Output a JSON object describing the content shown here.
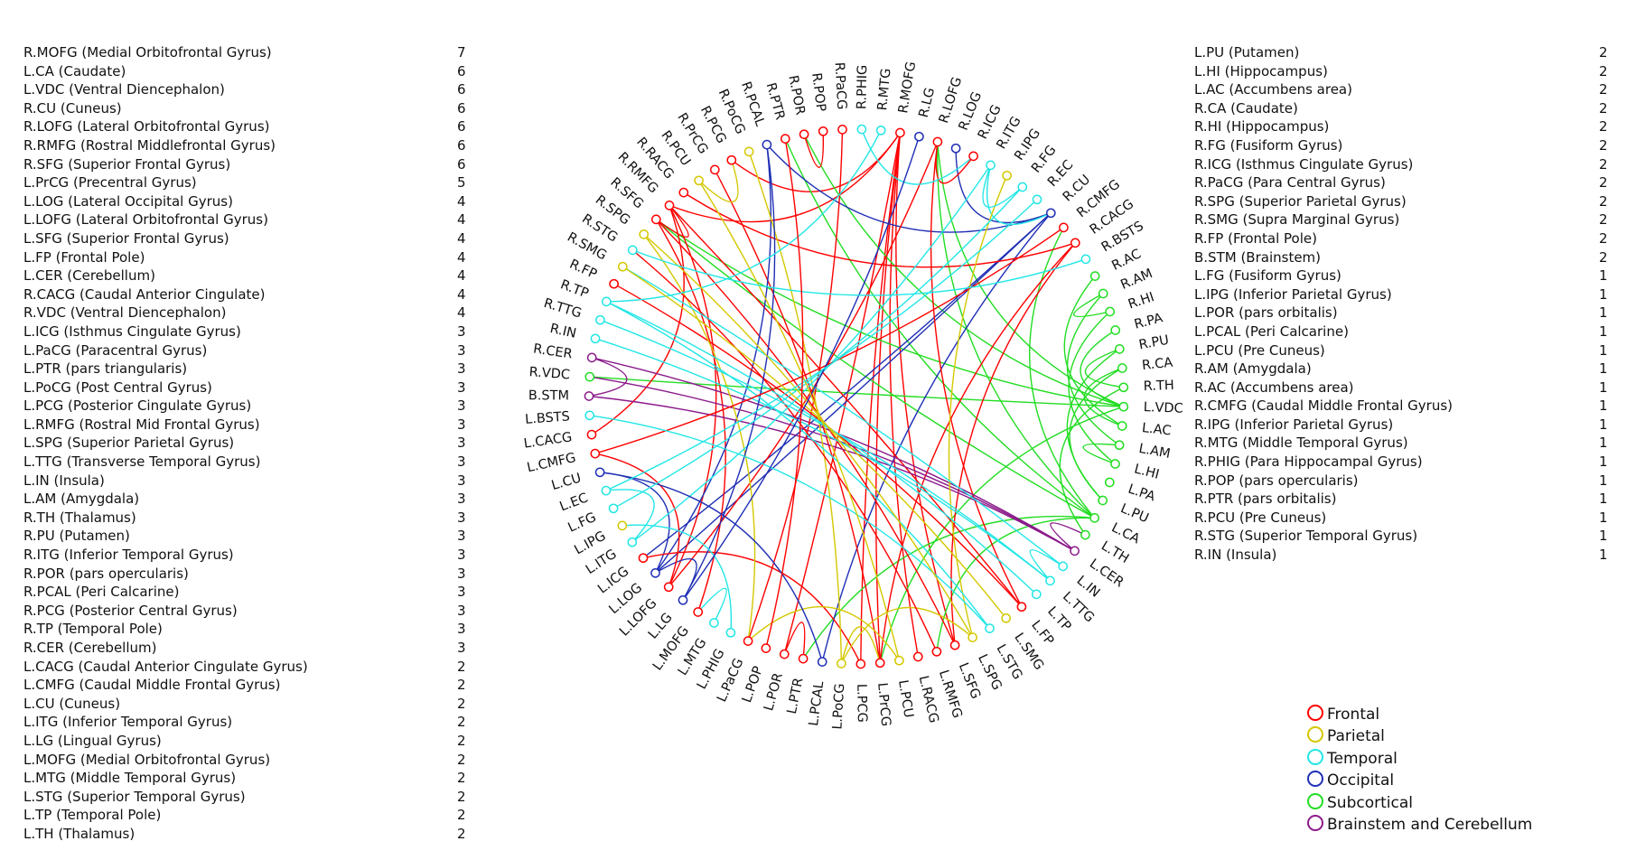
{
  "left_list": [
    {
      "label": "R.MOFG (Medial Orbitofrontal Gyrus)",
      "count": "7"
    },
    {
      "label": "L.CA (Caudate)",
      "count": "6"
    },
    {
      "label": "L.VDC (Ventral Diencephalon)",
      "count": "6"
    },
    {
      "label": "R.CU (Cuneus)",
      "count": "6"
    },
    {
      "label": "R.LOFG (Lateral Orbitofrontal Gyrus)",
      "count": "6"
    },
    {
      "label": "R.RMFG (Rostral Middlefrontal Gyrus)",
      "count": "6"
    },
    {
      "label": "R.SFG (Superior Frontal Gyrus)",
      "count": "6"
    },
    {
      "label": "L.PrCG (Precentral Gyrus)",
      "count": "5"
    },
    {
      "label": "L.LOG (Lateral Occipital Gyrus)",
      "count": "4"
    },
    {
      "label": "L.LOFG (Lateral Orbitofrontal Gyrus)",
      "count": "4"
    },
    {
      "label": "L.SFG (Superior Frontal Gyrus)",
      "count": "4"
    },
    {
      "label": "L.FP (Frontal Pole)",
      "count": "4"
    },
    {
      "label": "L.CER (Cerebellum)",
      "count": "4"
    },
    {
      "label": "R.CACG (Caudal Anterior Cingulate)",
      "count": "4"
    },
    {
      "label": "R.VDC (Ventral Diencephalon)",
      "count": "4"
    },
    {
      "label": "L.ICG (Isthmus Cingulate Gyrus)",
      "count": "3"
    },
    {
      "label": "L.PaCG (Paracentral Gyrus)",
      "count": "3"
    },
    {
      "label": "L.PTR (pars triangularis)",
      "count": "3"
    },
    {
      "label": "L.PoCG (Post Central Gyrus)",
      "count": "3"
    },
    {
      "label": "L.PCG (Posterior Cingulate Gyrus)",
      "count": "3"
    },
    {
      "label": "L.RMFG (Rostral Mid Frontal Gyrus)",
      "count": "3"
    },
    {
      "label": "L.SPG (Superior Parietal Gyrus)",
      "count": "3"
    },
    {
      "label": "L.TTG (Transverse Temporal Gyrus)",
      "count": "3"
    },
    {
      "label": "L.IN (Insula)",
      "count": "3"
    },
    {
      "label": "L.AM (Amygdala)",
      "count": "3"
    },
    {
      "label": "R.TH (Thalamus)",
      "count": "3"
    },
    {
      "label": "R.PU (Putamen)",
      "count": "3"
    },
    {
      "label": "R.ITG (Inferior Temporal Gyrus)",
      "count": "3"
    },
    {
      "label": "R.POR (pars opercularis)",
      "count": "3"
    },
    {
      "label": "R.PCAL (Peri Calcarine)",
      "count": "3"
    },
    {
      "label": "R.PCG (Posterior Central Gyrus)",
      "count": "3"
    },
    {
      "label": "R.TP (Temporal Pole)",
      "count": "3"
    },
    {
      "label": "R.CER (Cerebellum)",
      "count": "3"
    },
    {
      "label": "L.CACG (Caudal Anterior Cingulate Gyrus)",
      "count": "2"
    },
    {
      "label": "L.CMFG (Caudal Middle Frontal Gyrus)",
      "count": "2"
    },
    {
      "label": "L.CU (Cuneus)",
      "count": "2"
    },
    {
      "label": "L.ITG (Inferior Temporal Gyrus)",
      "count": "2"
    },
    {
      "label": "L.LG (Lingual Gyrus)",
      "count": "2"
    },
    {
      "label": "L.MOFG (Medial Orbitofrontal Gyrus)",
      "count": "2"
    },
    {
      "label": "L.MTG (Middle Temporal Gyrus)",
      "count": "2"
    },
    {
      "label": "L.STG (Superior Temporal Gyrus)",
      "count": "2"
    },
    {
      "label": "L.TP (Temporal Pole)",
      "count": "2"
    },
    {
      "label": "L.TH (Thalamus)",
      "count": "2"
    }
  ],
  "right_list": [
    {
      "label": "L.PU (Putamen)",
      "count": "2"
    },
    {
      "label": "L.HI (Hippocampus)",
      "count": "2"
    },
    {
      "label": "L.AC (Accumbens area)",
      "count": "2"
    },
    {
      "label": "R.CA (Caudate)",
      "count": "2"
    },
    {
      "label": "R.HI (Hippocampus)",
      "count": "2"
    },
    {
      "label": "R.FG (Fusiform Gyrus)",
      "count": "2"
    },
    {
      "label": "R.ICG (Isthmus Cingulate Gyrus)",
      "count": "2"
    },
    {
      "label": "R.PaCG (Para Central Gyrus)",
      "count": "2"
    },
    {
      "label": "R.SPG (Superior Parietal Gyrus)",
      "count": "2"
    },
    {
      "label": "R.SMG (Supra Marginal Gyrus)",
      "count": "2"
    },
    {
      "label": "R.FP (Frontal Pole)",
      "count": "2"
    },
    {
      "label": "B.STM (Brainstem)",
      "count": "2"
    },
    {
      "label": "L.FG (Fusiform Gyrus)",
      "count": "1"
    },
    {
      "label": "L.IPG (Inferior Parietal Gyrus)",
      "count": "1"
    },
    {
      "label": "L.POR (pars orbitalis)",
      "count": "1"
    },
    {
      "label": "L.PCAL (Peri Calcarine)",
      "count": "1"
    },
    {
      "label": "L.PCU (Pre Cuneus)",
      "count": "1"
    },
    {
      "label": "R.AM (Amygdala)",
      "count": "1"
    },
    {
      "label": "R.AC (Accumbens area)",
      "count": "1"
    },
    {
      "label": "R.CMFG (Caudal Middle Frontal Gyrus)",
      "count": "1"
    },
    {
      "label": "R.IPG (Inferior Parietal Gyrus)",
      "count": "1"
    },
    {
      "label": "R.MTG (Middle Temporal Gyrus)",
      "count": "1"
    },
    {
      "label": "R.PHIG (Para Hippocampal Gyrus)",
      "count": "1"
    },
    {
      "label": "R.POP (pars opercularis)",
      "count": "1"
    },
    {
      "label": "R.PTR (pars orbitalis)",
      "count": "1"
    },
    {
      "label": "R.PCU (Pre Cuneus)",
      "count": "1"
    },
    {
      "label": "R.STG (Superior Temporal Gyrus)",
      "count": "1"
    },
    {
      "label": "R.IN (Insula)",
      "count": "1"
    }
  ],
  "legend": [
    {
      "label": "Frontal",
      "color": "#ff0000"
    },
    {
      "label": "Parietal",
      "color": "#d4c800"
    },
    {
      "label": "Temporal",
      "color": "#22e6e6"
    },
    {
      "label": "Occipital",
      "color": "#1f2fb5"
    },
    {
      "label": "Subcortical",
      "color": "#22dd22"
    },
    {
      "label": "Brainstem and Cerebellum",
      "color": "#8b1a8b"
    }
  ],
  "category_colors": {
    "F": "#ff0000",
    "P": "#d4c800",
    "T": "#22e6e6",
    "O": "#1f2fb5",
    "S": "#22dd22",
    "B": "#8b1a8b"
  },
  "nodes": [
    {
      "label": "R.PaCG",
      "cat": "F"
    },
    {
      "label": "R.PHIG",
      "cat": "T"
    },
    {
      "label": "R.MTG",
      "cat": "T"
    },
    {
      "label": "R.MOFG",
      "cat": "F"
    },
    {
      "label": "R.LG",
      "cat": "O"
    },
    {
      "label": "R.LOFG",
      "cat": "F"
    },
    {
      "label": "R.LOG",
      "cat": "O"
    },
    {
      "label": "R.ICG",
      "cat": "F"
    },
    {
      "label": "R.ITG",
      "cat": "T"
    },
    {
      "label": "R.IPG",
      "cat": "P"
    },
    {
      "label": "R.FG",
      "cat": "T"
    },
    {
      "label": "R.EC",
      "cat": "T"
    },
    {
      "label": "R.CU",
      "cat": "O"
    },
    {
      "label": "R.CMFG",
      "cat": "F"
    },
    {
      "label": "R.CACG",
      "cat": "F"
    },
    {
      "label": "R.BSTS",
      "cat": "T"
    },
    {
      "label": "R.AC",
      "cat": "S"
    },
    {
      "label": "R.AM",
      "cat": "S"
    },
    {
      "label": "R.HI",
      "cat": "S"
    },
    {
      "label": "R.PA",
      "cat": "S"
    },
    {
      "label": "R.PU",
      "cat": "S"
    },
    {
      "label": "R.CA",
      "cat": "S"
    },
    {
      "label": "R.TH",
      "cat": "S"
    },
    {
      "label": "L.VDC",
      "cat": "S"
    },
    {
      "label": "L.AC",
      "cat": "S"
    },
    {
      "label": "L.AM",
      "cat": "S"
    },
    {
      "label": "L.HI",
      "cat": "S"
    },
    {
      "label": "L.PA",
      "cat": "S"
    },
    {
      "label": "L.PU",
      "cat": "S"
    },
    {
      "label": "L.CA",
      "cat": "S"
    },
    {
      "label": "L.TH",
      "cat": "S"
    },
    {
      "label": "L.CER",
      "cat": "B"
    },
    {
      "label": "L.IN",
      "cat": "T"
    },
    {
      "label": "L.TTG",
      "cat": "T"
    },
    {
      "label": "L.TP",
      "cat": "T"
    },
    {
      "label": "L.FP",
      "cat": "F"
    },
    {
      "label": "L.SMG",
      "cat": "P"
    },
    {
      "label": "L.STG",
      "cat": "T"
    },
    {
      "label": "L.SPG",
      "cat": "P"
    },
    {
      "label": "L.SFG",
      "cat": "F"
    },
    {
      "label": "L.RMFG",
      "cat": "F"
    },
    {
      "label": "L.RACG",
      "cat": "F"
    },
    {
      "label": "L.PCU",
      "cat": "P"
    },
    {
      "label": "L.PrCG",
      "cat": "F"
    },
    {
      "label": "L.PCG",
      "cat": "F"
    },
    {
      "label": "L.PoCG",
      "cat": "P"
    },
    {
      "label": "L.PCAL",
      "cat": "O"
    },
    {
      "label": "L.PTR",
      "cat": "F"
    },
    {
      "label": "L.POR",
      "cat": "F"
    },
    {
      "label": "L.POP",
      "cat": "F"
    },
    {
      "label": "L.PaCG",
      "cat": "F"
    },
    {
      "label": "L.PHIG",
      "cat": "T"
    },
    {
      "label": "L.MTG",
      "cat": "T"
    },
    {
      "label": "L.MOFG",
      "cat": "F"
    },
    {
      "label": "L.LG",
      "cat": "O"
    },
    {
      "label": "L.LOFG",
      "cat": "F"
    },
    {
      "label": "L.LOG",
      "cat": "O"
    },
    {
      "label": "L.ICG",
      "cat": "F"
    },
    {
      "label": "L.ITG",
      "cat": "T"
    },
    {
      "label": "L.IPG",
      "cat": "P"
    },
    {
      "label": "L.FG",
      "cat": "T"
    },
    {
      "label": "L.EC",
      "cat": "T"
    },
    {
      "label": "L.CU",
      "cat": "O"
    },
    {
      "label": "L.CMFG",
      "cat": "F"
    },
    {
      "label": "L.CACG",
      "cat": "F"
    },
    {
      "label": "L.BSTS",
      "cat": "T"
    },
    {
      "label": "B.STM",
      "cat": "B"
    },
    {
      "label": "R.VDC",
      "cat": "S"
    },
    {
      "label": "R.CER",
      "cat": "B"
    },
    {
      "label": "R.IN",
      "cat": "T"
    },
    {
      "label": "R.TTG",
      "cat": "T"
    },
    {
      "label": "R.TP",
      "cat": "T"
    },
    {
      "label": "R.FP",
      "cat": "F"
    },
    {
      "label": "R.SMG",
      "cat": "P"
    },
    {
      "label": "R.STG",
      "cat": "T"
    },
    {
      "label": "R.SPG",
      "cat": "P"
    },
    {
      "label": "R.SFG",
      "cat": "F"
    },
    {
      "label": "R.RMFG",
      "cat": "F"
    },
    {
      "label": "R.RACG",
      "cat": "F"
    },
    {
      "label": "R.PCU",
      "cat": "P"
    },
    {
      "label": "R.PrCG",
      "cat": "F"
    },
    {
      "label": "R.PCG",
      "cat": "F"
    },
    {
      "label": "R.PoCG",
      "cat": "P"
    },
    {
      "label": "R.PCAL",
      "cat": "O"
    },
    {
      "label": "R.PTR",
      "cat": "F"
    },
    {
      "label": "R.POR",
      "cat": "F"
    },
    {
      "label": "R.POP",
      "cat": "F"
    }
  ],
  "links": [
    [
      "R.MOFG",
      "L.PrCG",
      "F"
    ],
    [
      "R.MOFG",
      "L.PCG",
      "F"
    ],
    [
      "R.MOFG",
      "R.PCG",
      "F"
    ],
    [
      "R.MOFG",
      "L.RACG",
      "F"
    ],
    [
      "R.MOFG",
      "L.SFG",
      "F"
    ],
    [
      "R.MOFG",
      "L.POR",
      "F"
    ],
    [
      "R.MOFG",
      "R.RMFG",
      "F"
    ],
    [
      "L.CA",
      "R.PTR",
      "S"
    ],
    [
      "L.CA",
      "R.SFG",
      "S"
    ],
    [
      "L.CA",
      "L.RMFG",
      "S"
    ],
    [
      "L.CA",
      "R.CMFG",
      "S"
    ],
    [
      "L.CA",
      "L.PTR",
      "S"
    ],
    [
      "L.CA",
      "R.LOFG",
      "S"
    ],
    [
      "L.VDC",
      "R.VDC",
      "S"
    ],
    [
      "L.VDC",
      "R.LOFG",
      "S"
    ],
    [
      "L.VDC",
      "R.SFG",
      "S"
    ],
    [
      "L.VDC",
      "L.PrCG",
      "S"
    ],
    [
      "L.VDC",
      "R.PA",
      "S"
    ],
    [
      "L.VDC",
      "R.POR",
      "S"
    ],
    [
      "R.CU",
      "L.PCAL",
      "O"
    ],
    [
      "R.CU",
      "L.ICG",
      "O"
    ],
    [
      "R.CU",
      "R.LOG",
      "O"
    ],
    [
      "R.CU",
      "R.PCAL",
      "O"
    ],
    [
      "R.CU",
      "L.LOG",
      "O"
    ],
    [
      "R.CU",
      "R.ITG",
      "T"
    ],
    [
      "R.LOFG",
      "L.FP",
      "F"
    ],
    [
      "R.LOFG",
      "R.ICG",
      "F"
    ],
    [
      "R.LOFG",
      "L.LOFG",
      "F"
    ],
    [
      "R.RMFG",
      "L.LOFG",
      "F"
    ],
    [
      "R.RMFG",
      "L.FP",
      "F"
    ],
    [
      "R.RMFG",
      "R.SFG",
      "F"
    ],
    [
      "R.RMFG",
      "L.CACG",
      "F"
    ],
    [
      "R.SFG",
      "L.SFG",
      "F"
    ],
    [
      "R.SFG",
      "L.MOFG",
      "F"
    ],
    [
      "L.PrCG",
      "R.PrCG",
      "F"
    ],
    [
      "L.PrCG",
      "L.PoCG",
      "P"
    ],
    [
      "L.PrCG",
      "R.CACG",
      "F"
    ],
    [
      "L.LOG",
      "L.CU",
      "O"
    ],
    [
      "L.LOG",
      "R.PCAL",
      "O"
    ],
    [
      "L.LOG",
      "L.LG",
      "O"
    ],
    [
      "L.LOFG",
      "L.CMFG",
      "F"
    ],
    [
      "L.SFG",
      "R.CACG",
      "F"
    ],
    [
      "L.FP",
      "R.FP",
      "F"
    ],
    [
      "L.CER",
      "R.CER",
      "B"
    ],
    [
      "L.CER",
      "L.TH",
      "B"
    ],
    [
      "L.CER",
      "B.STM",
      "B"
    ],
    [
      "L.CER",
      "R.VDC",
      "B"
    ],
    [
      "R.CACG",
      "R.RACG",
      "F"
    ],
    [
      "L.ICG",
      "L.PCG",
      "F"
    ],
    [
      "L.PaCG",
      "R.PaCG",
      "F"
    ],
    [
      "L.PaCG",
      "L.PCU",
      "P"
    ],
    [
      "L.PaCG",
      "R.SPG",
      "P"
    ],
    [
      "L.PTR",
      "L.POR",
      "F"
    ],
    [
      "L.PoCG",
      "R.PoCG",
      "P"
    ],
    [
      "L.PoCG",
      "L.SPG",
      "P"
    ],
    [
      "L.RMFG",
      "R.STG",
      "F"
    ],
    [
      "L.SPG",
      "R.IPG",
      "P"
    ],
    [
      "L.TTG",
      "R.TTG",
      "T"
    ],
    [
      "L.TTG",
      "L.IN",
      "T"
    ],
    [
      "L.TTG",
      "R.IN",
      "T"
    ],
    [
      "L.IN",
      "R.SMG",
      "T"
    ],
    [
      "L.AM",
      "R.AM",
      "S"
    ],
    [
      "L.AM",
      "L.HI",
      "S"
    ],
    [
      "R.TH",
      "L.TH",
      "S"
    ],
    [
      "R.TH",
      "R.PU",
      "S"
    ],
    [
      "R.PU",
      "L.PU",
      "S"
    ],
    [
      "R.ITG",
      "L.ITG",
      "T"
    ],
    [
      "R.ITG",
      "R.FG",
      "T"
    ],
    [
      "R.POR",
      "R.POP",
      "F"
    ],
    [
      "R.PCAL",
      "L.LG",
      "O"
    ],
    [
      "R.PCG",
      "R.PCU",
      "P"
    ],
    [
      "R.TP",
      "L.TP",
      "T"
    ],
    [
      "R.TP",
      "R.MTG",
      "T"
    ],
    [
      "R.TP",
      "L.STG",
      "T"
    ],
    [
      "R.CER",
      "B.STM",
      "B"
    ],
    [
      "L.CMFG",
      "R.CMFG",
      "F"
    ],
    [
      "L.CU",
      "L.PCAL",
      "O"
    ],
    [
      "L.MOFG",
      "L.MTG",
      "T"
    ],
    [
      "L.STG",
      "L.BSTS",
      "T"
    ],
    [
      "L.HI",
      "R.HI",
      "S"
    ],
    [
      "L.AC",
      "R.AC",
      "S"
    ],
    [
      "L.AC",
      "R.CA",
      "S"
    ],
    [
      "L.PU",
      "R.CA",
      "S"
    ],
    [
      "R.FG",
      "L.FG",
      "T"
    ],
    [
      "R.ICG",
      "R.PHIG",
      "T"
    ],
    [
      "R.SMG",
      "L.SMG",
      "P"
    ],
    [
      "L.IPG",
      "L.PHIG",
      "T"
    ],
    [
      "R.SPG",
      "L.SPG",
      "P"
    ],
    [
      "L.ITG",
      "L.EC",
      "T"
    ],
    [
      "R.LG",
      "L.LG",
      "O"
    ],
    [
      "R.PCU",
      "L.PCU",
      "P"
    ],
    [
      "R.STG",
      "R.BSTS",
      "T"
    ],
    [
      "R.EC",
      "L.EC",
      "T"
    ],
    [
      "R.PTR",
      "L.POP",
      "F"
    ],
    [
      "R.AM",
      "R.HI",
      "S"
    ]
  ]
}
